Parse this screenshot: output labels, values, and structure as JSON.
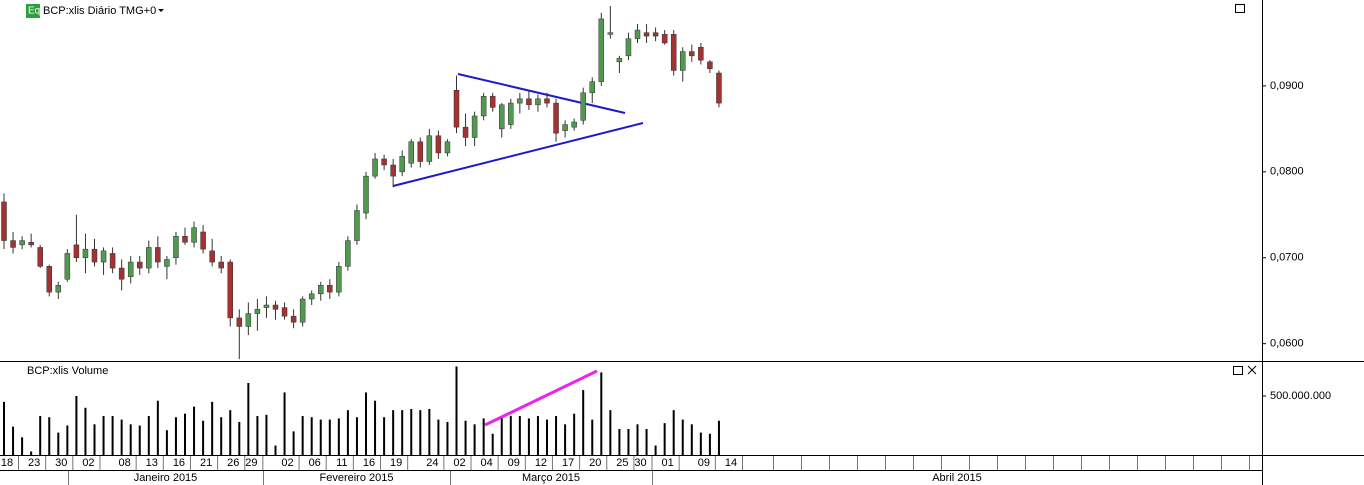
{
  "chart_data": [
    {
      "type": "candlestick",
      "title": "BCP:xlis Diário TMG+0",
      "badge": "Eq",
      "categories": [
        "18",
        null,
        null,
        "23",
        null,
        null,
        "30",
        null,
        null,
        "02",
        null,
        null,
        null,
        "08",
        null,
        null,
        "13",
        null,
        null,
        "16",
        null,
        null,
        "21",
        null,
        null,
        "26",
        null,
        "29",
        null,
        null,
        null,
        "02",
        null,
        null,
        "06",
        null,
        null,
        "11",
        null,
        null,
        "16",
        null,
        null,
        "19",
        null,
        null,
        null,
        "24",
        null,
        null,
        "02",
        null,
        null,
        "04",
        null,
        null,
        "09",
        null,
        null,
        "12",
        null,
        null,
        "17",
        null,
        null,
        "20",
        null,
        null,
        "25",
        null,
        "30",
        null,
        null,
        "01",
        null,
        null,
        null,
        "09",
        null,
        null,
        "14"
      ],
      "open": [
        0.0765,
        0.072,
        0.0715,
        0.0718,
        0.0712,
        0.069,
        0.066,
        0.0675,
        0.0715,
        0.07,
        0.071,
        0.0695,
        0.0705,
        0.0688,
        0.0678,
        0.0695,
        0.0688,
        0.0712,
        0.069,
        0.07,
        0.0725,
        0.0718,
        0.073,
        0.0708,
        0.0695,
        0.0695,
        0.063,
        0.062,
        0.0635,
        0.0642,
        0.0645,
        0.0642,
        0.0632,
        0.0625,
        0.0652,
        0.0658,
        0.0668,
        0.066,
        0.069,
        0.072,
        0.0752,
        0.0795,
        0.0815,
        0.0808,
        0.08,
        0.081,
        0.0835,
        0.0812,
        0.0842,
        0.0822,
        0.0895,
        0.0852,
        0.084,
        0.0865,
        0.0888,
        0.085,
        0.0855,
        0.088,
        0.0885,
        0.0878,
        0.0885,
        0.088,
        0.0848,
        0.0852,
        0.086,
        0.0892,
        0.0905,
        0.096,
        0.0928,
        0.0935,
        0.0955,
        0.0962,
        0.0962,
        0.096,
        0.096,
        0.0918,
        0.094,
        0.0945,
        0.0928,
        0.0915,
        null
      ],
      "high": [
        0.0775,
        0.073,
        0.0725,
        0.0728,
        0.0715,
        0.0692,
        0.0672,
        0.071,
        0.075,
        0.0728,
        0.0722,
        0.0712,
        0.0712,
        0.0698,
        0.0702,
        0.0702,
        0.072,
        0.0725,
        0.0702,
        0.073,
        0.0735,
        0.0742,
        0.0738,
        0.0722,
        0.0702,
        0.0698,
        0.064,
        0.0648,
        0.0652,
        0.0655,
        0.065,
        0.0648,
        0.064,
        0.0655,
        0.0662,
        0.0672,
        0.0675,
        0.0695,
        0.0725,
        0.0762,
        0.08,
        0.0822,
        0.082,
        0.0815,
        0.0825,
        0.0838,
        0.084,
        0.085,
        0.0848,
        0.0838,
        0.0912,
        0.0868,
        0.087,
        0.0892,
        0.0892,
        0.088,
        0.0885,
        0.0892,
        0.0895,
        0.089,
        0.0892,
        0.0885,
        0.086,
        0.0862,
        0.0898,
        0.091,
        0.0985,
        0.0993,
        0.0935,
        0.0962,
        0.0972,
        0.0972,
        0.0968,
        0.0965,
        0.0965,
        0.0945,
        0.0948,
        0.095,
        0.093,
        0.0918,
        null
      ],
      "low": [
        0.071,
        0.0705,
        0.071,
        0.0712,
        0.0688,
        0.0655,
        0.0652,
        0.0672,
        0.0695,
        0.0682,
        0.069,
        0.068,
        0.0682,
        0.0662,
        0.067,
        0.068,
        0.0682,
        0.0688,
        0.0675,
        0.0692,
        0.0715,
        0.0712,
        0.0705,
        0.069,
        0.0682,
        0.062,
        0.0582,
        0.061,
        0.0615,
        0.063,
        0.0628,
        0.0628,
        0.0618,
        0.062,
        0.0645,
        0.065,
        0.0652,
        0.0655,
        0.0685,
        0.0715,
        0.0745,
        0.0792,
        0.0802,
        0.0782,
        0.0795,
        0.0805,
        0.0805,
        0.0808,
        0.0815,
        0.0818,
        0.0845,
        0.083,
        0.083,
        0.086,
        0.087,
        0.084,
        0.085,
        0.0868,
        0.0872,
        0.087,
        0.0875,
        0.0835,
        0.084,
        0.0848,
        0.0855,
        0.088,
        0.09,
        0.0955,
        0.0915,
        0.093,
        0.095,
        0.095,
        0.0952,
        0.0948,
        0.0912,
        0.0905,
        0.0928,
        0.0925,
        0.0915,
        0.0875,
        null
      ],
      "close": [
        0.072,
        0.0712,
        0.072,
        0.0715,
        0.069,
        0.066,
        0.0668,
        0.0705,
        0.07,
        0.071,
        0.0695,
        0.0708,
        0.0688,
        0.0675,
        0.0695,
        0.0688,
        0.0712,
        0.0695,
        0.0698,
        0.0725,
        0.0718,
        0.0735,
        0.071,
        0.0695,
        0.0688,
        0.063,
        0.062,
        0.0635,
        0.064,
        0.0645,
        0.064,
        0.0632,
        0.0625,
        0.0652,
        0.0658,
        0.0668,
        0.066,
        0.069,
        0.072,
        0.0755,
        0.0795,
        0.0815,
        0.0808,
        0.0795,
        0.0818,
        0.0835,
        0.0812,
        0.0842,
        0.0822,
        0.0835,
        0.0852,
        0.084,
        0.0865,
        0.0888,
        0.0875,
        0.0878,
        0.088,
        0.0885,
        0.0878,
        0.0885,
        0.088,
        0.0845,
        0.0855,
        0.0858,
        0.0892,
        0.0905,
        0.0978,
        0.0962,
        0.0932,
        0.0955,
        0.0965,
        0.0958,
        0.0958,
        0.095,
        0.0918,
        0.094,
        0.0935,
        0.093,
        0.092,
        0.088,
        null
      ],
      "up_color": "#4f9a4f",
      "down_color": "#a33232",
      "ylim": [
        0.0581,
        0.1
      ],
      "yticks": [
        {
          "value": 0.06,
          "label": "0,0600"
        },
        {
          "value": 0.07,
          "label": "0,0700"
        },
        {
          "value": 0.08,
          "label": "0,0800"
        },
        {
          "value": 0.09,
          "label": "0,0900"
        }
      ],
      "months": [
        "Janeiro 2015",
        "Fevereiro 2015",
        "Março 2015",
        "Abril 2015"
      ]
    },
    {
      "type": "bar",
      "title": "BCP:xlis Volume",
      "color": "#000000",
      "values": [
        450000000,
        240000000,
        150000000,
        30000000,
        330000000,
        320000000,
        190000000,
        250000000,
        500000000,
        400000000,
        260000000,
        330000000,
        330000000,
        300000000,
        260000000,
        250000000,
        330000000,
        460000000,
        210000000,
        320000000,
        350000000,
        410000000,
        290000000,
        450000000,
        320000000,
        380000000,
        280000000,
        610000000,
        330000000,
        340000000,
        80000000,
        530000000,
        200000000,
        330000000,
        320000000,
        300000000,
        300000000,
        310000000,
        380000000,
        320000000,
        530000000,
        460000000,
        320000000,
        380000000,
        380000000,
        390000000,
        380000000,
        390000000,
        300000000,
        280000000,
        750000000,
        290000000,
        260000000,
        310000000,
        180000000,
        310000000,
        330000000,
        330000000,
        310000000,
        330000000,
        300000000,
        330000000,
        260000000,
        350000000,
        550000000,
        300000000,
        700000000,
        380000000,
        220000000,
        220000000,
        260000000,
        220000000,
        80000000,
        270000000,
        380000000,
        300000000,
        260000000,
        190000000,
        180000000,
        290000000,
        null
      ],
      "ylim": [
        0,
        788000000
      ],
      "yticks": [
        {
          "value": 500000000,
          "label": "500.000.000"
        }
      ]
    }
  ]
}
